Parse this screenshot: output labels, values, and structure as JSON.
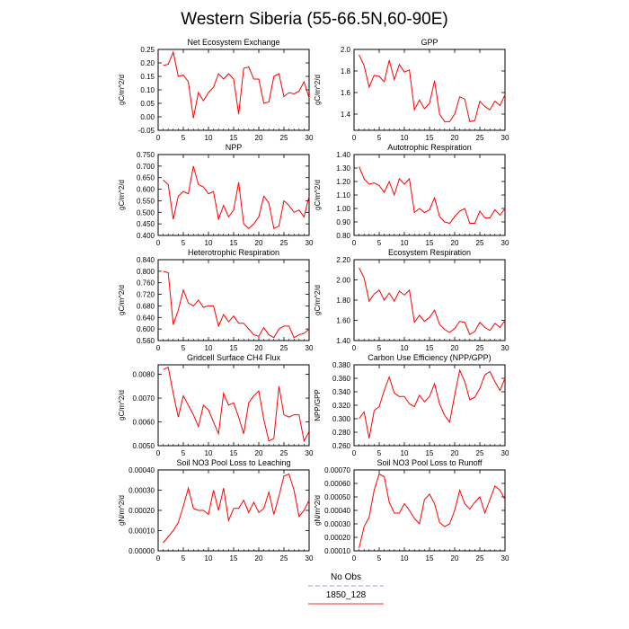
{
  "figure_title": "Western Siberia (55-66.5N,60-90E)",
  "legend": [
    {
      "label": "No Obs",
      "color": "#9999ee",
      "dash": true
    },
    {
      "label": "1850_128",
      "color": "#ee3333",
      "dash": false
    }
  ],
  "line_color": "#ff0000",
  "chart_data": [
    {
      "type": "line",
      "title": "Net Ecosystem Exchange",
      "ylabel": "gC/m^2/d",
      "xlim": [
        0,
        30
      ],
      "ylim": [
        -0.05,
        0.25
      ],
      "xticks": [
        0,
        5,
        10,
        15,
        20,
        25,
        30
      ],
      "yticks": [
        "-0.05",
        "0.00",
        "0.05",
        "0.10",
        "0.15",
        "0.20",
        "0.25"
      ],
      "series": [
        {
          "x": [
            1,
            2,
            3,
            4,
            5,
            6,
            7,
            8,
            9,
            10,
            11,
            12,
            13,
            14,
            15,
            16,
            17,
            18,
            19,
            20,
            21,
            22,
            23,
            24,
            25,
            26,
            27,
            28,
            29,
            30
          ],
          "values": [
            0.19,
            0.195,
            0.24,
            0.15,
            0.155,
            0.13,
            -0.005,
            0.09,
            0.06,
            0.09,
            0.11,
            0.16,
            0.14,
            0.16,
            0.14,
            0.01,
            0.18,
            0.185,
            0.14,
            0.14,
            0.05,
            0.055,
            0.15,
            0.16,
            0.075,
            0.09,
            0.085,
            0.095,
            0.13,
            0.07
          ]
        }
      ]
    },
    {
      "type": "line",
      "title": "GPP",
      "ylabel": "gC/m^2/d",
      "xlim": [
        0,
        30
      ],
      "ylim": [
        1.25,
        2.0
      ],
      "xticks": [
        0,
        5,
        10,
        15,
        20,
        25,
        30
      ],
      "yticks": [
        "1.4",
        "1.6",
        "1.8",
        "2.0"
      ],
      "series": [
        {
          "x": [
            1,
            2,
            3,
            4,
            5,
            6,
            7,
            8,
            9,
            10,
            11,
            12,
            13,
            14,
            15,
            16,
            17,
            18,
            19,
            20,
            21,
            22,
            23,
            24,
            25,
            26,
            27,
            28,
            29,
            30
          ],
          "values": [
            1.95,
            1.85,
            1.65,
            1.76,
            1.75,
            1.7,
            1.9,
            1.72,
            1.86,
            1.79,
            1.81,
            1.44,
            1.53,
            1.45,
            1.5,
            1.71,
            1.4,
            1.33,
            1.33,
            1.4,
            1.56,
            1.54,
            1.33,
            1.34,
            1.52,
            1.47,
            1.44,
            1.52,
            1.48,
            1.58
          ]
        }
      ]
    },
    {
      "type": "line",
      "title": "NPP",
      "ylabel": "gC/m^2/d",
      "xlim": [
        0,
        30
      ],
      "ylim": [
        0.4,
        0.75
      ],
      "xticks": [
        0,
        5,
        10,
        15,
        20,
        25,
        30
      ],
      "yticks": [
        "0.400",
        "0.450",
        "0.500",
        "0.550",
        "0.600",
        "0.650",
        "0.700",
        "0.750"
      ],
      "series": [
        {
          "x": [
            1,
            2,
            3,
            4,
            5,
            6,
            7,
            8,
            9,
            10,
            11,
            12,
            13,
            14,
            15,
            16,
            17,
            18,
            19,
            20,
            21,
            22,
            23,
            24,
            25,
            26,
            27,
            28,
            29,
            30
          ],
          "values": [
            0.64,
            0.62,
            0.47,
            0.57,
            0.59,
            0.58,
            0.7,
            0.62,
            0.61,
            0.58,
            0.59,
            0.47,
            0.53,
            0.48,
            0.51,
            0.63,
            0.45,
            0.43,
            0.45,
            0.48,
            0.57,
            0.54,
            0.43,
            0.44,
            0.55,
            0.53,
            0.5,
            0.51,
            0.48,
            0.57
          ]
        }
      ]
    },
    {
      "type": "line",
      "title": "Autotrophic Respiration",
      "ylabel": "gC/m^2/d",
      "xlim": [
        0,
        30
      ],
      "ylim": [
        0.8,
        1.4
      ],
      "xticks": [
        0,
        5,
        10,
        15,
        20,
        25,
        30
      ],
      "yticks": [
        "0.80",
        "0.90",
        "1.00",
        "1.10",
        "1.20",
        "1.30",
        "1.40"
      ],
      "series": [
        {
          "x": [
            1,
            2,
            3,
            4,
            5,
            6,
            7,
            8,
            9,
            10,
            11,
            12,
            13,
            14,
            15,
            16,
            17,
            18,
            19,
            20,
            21,
            22,
            23,
            24,
            25,
            26,
            27,
            28,
            29,
            30
          ],
          "values": [
            1.31,
            1.22,
            1.18,
            1.19,
            1.17,
            1.12,
            1.2,
            1.1,
            1.22,
            1.18,
            1.22,
            0.97,
            1.0,
            0.97,
            0.99,
            1.08,
            0.94,
            0.9,
            0.89,
            0.94,
            0.98,
            1.0,
            0.89,
            0.89,
            0.98,
            0.93,
            0.93,
            0.99,
            0.95,
            1.0
          ]
        }
      ]
    },
    {
      "type": "line",
      "title": "Heterotrophic Respiration",
      "ylabel": "gC/m^2/d",
      "xlim": [
        0,
        30
      ],
      "ylim": [
        0.56,
        0.84
      ],
      "xticks": [
        0,
        5,
        10,
        15,
        20,
        25,
        30
      ],
      "yticks": [
        "0.560",
        "0.600",
        "0.640",
        "0.680",
        "0.720",
        "0.760",
        "0.800",
        "0.840"
      ],
      "series": [
        {
          "x": [
            1,
            2,
            3,
            4,
            5,
            6,
            7,
            8,
            9,
            10,
            11,
            12,
            13,
            14,
            15,
            16,
            17,
            18,
            19,
            20,
            21,
            22,
            23,
            24,
            25,
            26,
            27,
            28,
            29,
            30
          ],
          "values": [
            0.8,
            0.795,
            0.615,
            0.665,
            0.735,
            0.69,
            0.68,
            0.7,
            0.675,
            0.68,
            0.68,
            0.61,
            0.65,
            0.625,
            0.645,
            0.62,
            0.62,
            0.6,
            0.58,
            0.575,
            0.605,
            0.58,
            0.57,
            0.6,
            0.61,
            0.61,
            0.57,
            0.58,
            0.585,
            0.6
          ]
        }
      ]
    },
    {
      "type": "line",
      "title": "Ecosystem Respiration",
      "ylabel": "gC/m^2/d",
      "xlim": [
        0,
        30
      ],
      "ylim": [
        1.4,
        2.2
      ],
      "xticks": [
        0,
        5,
        10,
        15,
        20,
        25,
        30
      ],
      "yticks": [
        "1.40",
        "1.60",
        "1.80",
        "2.00",
        "2.20"
      ],
      "series": [
        {
          "x": [
            1,
            2,
            3,
            4,
            5,
            6,
            7,
            8,
            9,
            10,
            11,
            12,
            13,
            14,
            15,
            16,
            17,
            18,
            19,
            20,
            21,
            22,
            23,
            24,
            25,
            26,
            27,
            28,
            29,
            30
          ],
          "values": [
            2.12,
            2.02,
            1.79,
            1.86,
            1.9,
            1.8,
            1.87,
            1.79,
            1.89,
            1.85,
            1.9,
            1.58,
            1.65,
            1.59,
            1.63,
            1.7,
            1.56,
            1.51,
            1.48,
            1.52,
            1.59,
            1.58,
            1.46,
            1.49,
            1.58,
            1.53,
            1.5,
            1.57,
            1.53,
            1.6
          ]
        }
      ]
    },
    {
      "type": "line",
      "title": "Gridcell Surface CH4 Flux",
      "ylabel": "gC/m^2/d",
      "xlim": [
        0,
        30
      ],
      "ylim": [
        0.005,
        0.0084
      ],
      "xticks": [
        0,
        5,
        10,
        15,
        20,
        25,
        30
      ],
      "yticks": [
        "0.0050",
        "0.0060",
        "0.0070",
        "0.0080"
      ],
      "series": [
        {
          "x": [
            1,
            2,
            3,
            4,
            5,
            6,
            7,
            8,
            9,
            10,
            11,
            12,
            13,
            14,
            15,
            16,
            17,
            18,
            19,
            20,
            21,
            22,
            23,
            24,
            25,
            26,
            27,
            28,
            29,
            30
          ],
          "values": [
            0.0082,
            0.0083,
            0.0072,
            0.0062,
            0.0071,
            0.0067,
            0.0063,
            0.0058,
            0.0067,
            0.0065,
            0.006,
            0.0055,
            0.0072,
            0.0067,
            0.0068,
            0.0062,
            0.0055,
            0.0068,
            0.0071,
            0.0073,
            0.0061,
            0.0052,
            0.0053,
            0.0075,
            0.0063,
            0.0062,
            0.0063,
            0.0063,
            0.0052,
            0.0056
          ]
        }
      ]
    },
    {
      "type": "line",
      "title": "Carbon Use Efficiency (NPP/GPP)",
      "ylabel": "NPP/GPP",
      "xlim": [
        0,
        30
      ],
      "ylim": [
        0.26,
        0.38
      ],
      "xticks": [
        0,
        5,
        10,
        15,
        20,
        25,
        30
      ],
      "yticks": [
        "0.260",
        "0.280",
        "0.300",
        "0.320",
        "0.340",
        "0.360",
        "0.380"
      ],
      "series": [
        {
          "x": [
            1,
            2,
            3,
            4,
            5,
            6,
            7,
            8,
            9,
            10,
            11,
            12,
            13,
            14,
            15,
            16,
            17,
            18,
            19,
            20,
            21,
            22,
            23,
            24,
            25,
            26,
            27,
            28,
            29,
            30
          ],
          "values": [
            0.3,
            0.31,
            0.271,
            0.312,
            0.318,
            0.342,
            0.362,
            0.338,
            0.333,
            0.333,
            0.322,
            0.318,
            0.335,
            0.325,
            0.333,
            0.352,
            0.322,
            0.305,
            0.295,
            0.335,
            0.372,
            0.355,
            0.328,
            0.332,
            0.345,
            0.365,
            0.37,
            0.355,
            0.342,
            0.36
          ]
        }
      ]
    },
    {
      "type": "line",
      "title": "Soil NO3 Pool Loss to Leaching",
      "ylabel": "gN/m^2/d",
      "xlim": [
        0,
        30
      ],
      "ylim": [
        0.0,
        0.0004
      ],
      "xticks": [
        0,
        5,
        10,
        15,
        20,
        25,
        30
      ],
      "yticks": [
        "0.00000",
        "0.00010",
        "0.00020",
        "0.00030",
        "0.00040"
      ],
      "series": [
        {
          "x": [
            1,
            2,
            3,
            4,
            5,
            6,
            7,
            8,
            9,
            10,
            11,
            12,
            13,
            14,
            15,
            16,
            17,
            18,
            19,
            20,
            21,
            22,
            23,
            24,
            25,
            26,
            27,
            28,
            29,
            30
          ],
          "values": [
            4e-05,
            7e-05,
            0.0001,
            0.00014,
            0.00022,
            0.00031,
            0.00021,
            0.0002,
            0.0002,
            0.00018,
            0.0003,
            0.0002,
            0.00031,
            0.00015,
            0.00021,
            0.00021,
            0.00025,
            0.00019,
            0.00024,
            0.00019,
            0.00021,
            0.00029,
            0.00018,
            0.00027,
            0.00037,
            0.00038,
            0.0003,
            0.00017,
            0.0002,
            0.00025
          ]
        }
      ]
    },
    {
      "type": "line",
      "title": "Soil NO3 Pool Loss to Runoff",
      "ylabel": "gN/m^2/d",
      "xlim": [
        0,
        30
      ],
      "ylim": [
        0.0001,
        0.0007
      ],
      "xticks": [
        0,
        5,
        10,
        15,
        20,
        25,
        30
      ],
      "yticks": [
        "0.00010",
        "0.00020",
        "0.00030",
        "0.00040",
        "0.00050",
        "0.00060",
        "0.00070"
      ],
      "series": [
        {
          "x": [
            1,
            2,
            3,
            4,
            5,
            6,
            7,
            8,
            9,
            10,
            11,
            12,
            13,
            14,
            15,
            16,
            17,
            18,
            19,
            20,
            21,
            22,
            23,
            24,
            25,
            26,
            27,
            28,
            29,
            30
          ],
          "values": [
            0.00012,
            0.00028,
            0.00035,
            0.00055,
            0.00067,
            0.00065,
            0.00046,
            0.00038,
            0.00038,
            0.00045,
            0.0004,
            0.00034,
            0.0003,
            0.00048,
            0.00052,
            0.00045,
            0.00031,
            0.00028,
            0.0003,
            0.0004,
            0.00055,
            0.00045,
            0.00041,
            0.00046,
            0.0005,
            0.00038,
            0.00048,
            0.00058,
            0.00055,
            0.00048
          ]
        }
      ]
    }
  ]
}
